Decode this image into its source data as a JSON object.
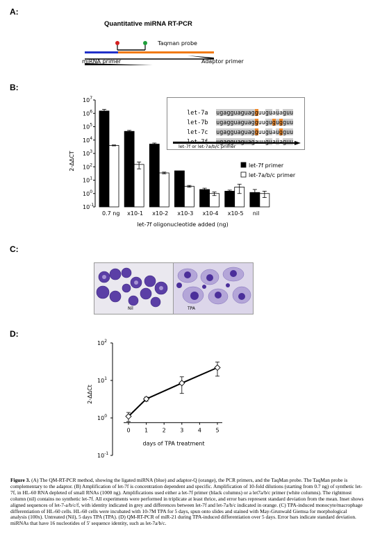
{
  "panels": {
    "A": {
      "label": "A:",
      "title": "Quantitative miRNA RT-PCR",
      "taqman": "Taqman probe",
      "mirna_primer": "miRNA primer",
      "adaptor_primer": "Adaptor primer"
    },
    "B": {
      "label": "B:",
      "ylabel": "2-ΔΔCT",
      "xlabel": "let-7f oligonucleotide added (ng)",
      "legend": [
        "let-7f primer",
        "let-7a/b/c primer"
      ],
      "inset_caption": "let-7f or let-7a/b/c primer",
      "inset_rows": [
        {
          "name": "let-7a",
          "seq": "ugagguaguagguuguauaguu"
        },
        {
          "name": "let-7b",
          "seq": "ugagguaguagguugugugguu"
        },
        {
          "name": "let-7c",
          "seq": "ugagguaguagguuguaugguu"
        },
        {
          "name": "let-7f",
          "seq": "ugagguaguagauuguauaguu"
        }
      ]
    },
    "C": {
      "label": "C:",
      "left_label": "Nil",
      "right_label": "TPA"
    },
    "D": {
      "label": "D:",
      "ylabel": "2-ΔΔCt",
      "xlabel": "days of TPA treatment"
    }
  },
  "chart_data": [
    {
      "type": "bar",
      "categories": [
        "0.7 ng",
        "x10-1",
        "x10-2",
        "x10-3",
        "x10-4",
        "x10-5",
        "nil"
      ],
      "yscale": "log",
      "ylim": [
        0.1,
        10000000
      ],
      "yticks": [
        "10-1",
        "100",
        "101",
        "102",
        "103",
        "104",
        "105",
        "106",
        "107"
      ],
      "series": [
        {
          "name": "let-7f primer",
          "values": [
            1500000,
            45000,
            5000,
            50,
            2,
            1.5,
            1.2
          ],
          "errors": [
            500000,
            8000,
            1000,
            0,
            0.5,
            0.3,
            0.8
          ]
        },
        {
          "name": "let-7a/b/c primer",
          "values": [
            4000,
            150,
            35,
            3.5,
            1,
            3,
            1
          ],
          "errors": [
            300,
            80,
            5,
            0.5,
            0.3,
            2,
            0.5
          ]
        }
      ],
      "xlabel": "let-7f oligonucleotide added (ng)",
      "ylabel": "2-ΔΔCT",
      "legend": "right"
    },
    {
      "type": "line",
      "x": [
        0,
        1,
        3,
        5
      ],
      "y": [
        1.1,
        3.2,
        8.5,
        22
      ],
      "errors": [
        0.3,
        0.4,
        4,
        9
      ],
      "yscale": "log",
      "ylim": [
        0.1,
        100
      ],
      "xticks": [
        "0",
        "1",
        "2",
        "3",
        "4",
        "5"
      ],
      "yticks": [
        "10-1",
        "100",
        "101",
        "102"
      ],
      "xlabel": "days of TPA treatment",
      "ylabel": "2-ΔΔCt"
    }
  ],
  "caption": {
    "lead": "Figure 3.",
    "text": "(A) The QM-RT-PCR method, showing the ligated miRNA (blue) and adaptor-Q (orange), the PCR primers, and the TaqMan probe. The TaqMan probe is complementary to the adaptor. (B) Amplification of let-7f is concentration dependent and specific. Amplification of 10-fold dilutions (starting from 0.7 ng) of synthetic let-7f, in HL-60 RNA depleted of small RNAs (1000 ng). Amplifications used either a let-7f primer (black columns) or a let7a/b/c primer (white columns). The rightmost column (nil) contains no synthetic let-7f. All experiments were performed in triplicate at least thrice, and error bars represent standard deviation from the mean. Inset shows aligned sequences of let-7-a/b/c/f, with identity indicated in grey and differences between let-7f and let-7a/b/c indicated in orange. (C) TPA-induced monocyte/macrophage differentiation of HL-60 cells. HL-60 cells were incubated with 10-7M TPA for 5 days, spun onto slides and stained with May-Grunwald Giemsa for morphological analysis (100x). Untreated (Nil), 5 days TPA (TPA). (D) QM-RT-PCR of miR-21 during TPA-induced differentiation over 5 days. Error bars indicate standard deviation.",
    "footer": "miRNAs that have 16 nucleotides of 5' sequence identity, such as let-7a/b/c."
  }
}
